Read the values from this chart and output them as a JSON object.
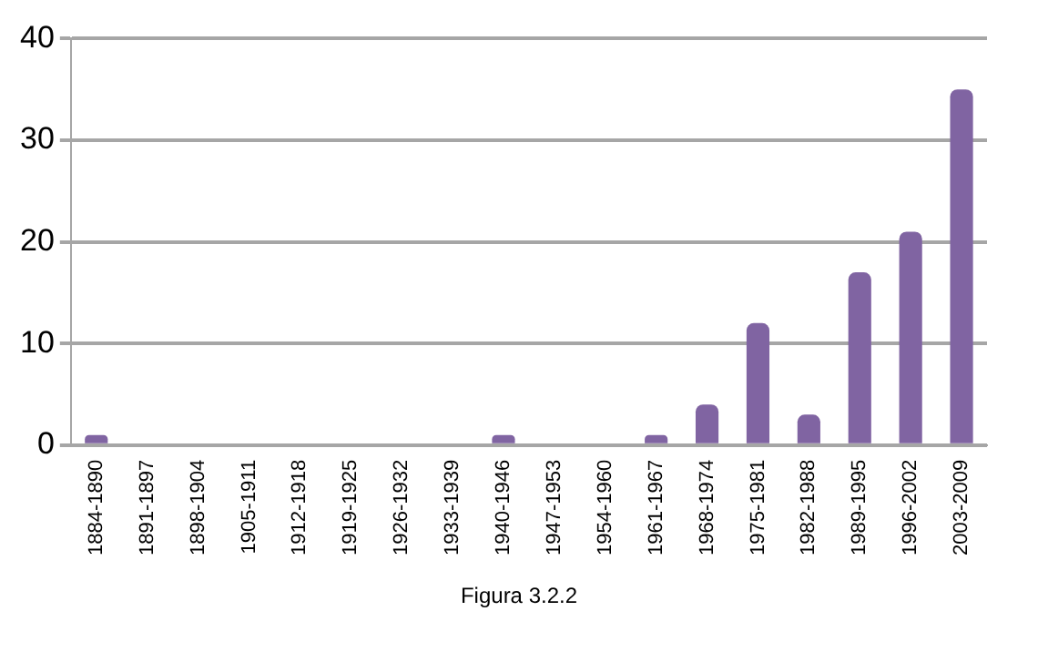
{
  "chart_data": {
    "type": "bar",
    "categories": [
      "1884-1890",
      "1891-1897",
      "1898-1904",
      "1905-1911",
      "1912-1918",
      "1919-1925",
      "1926-1932",
      "1933-1939",
      "1940-1946",
      "1947-1953",
      "1954-1960",
      "1961-1967",
      "1968-1974",
      "1975-1981",
      "1982-1988",
      "1989-1995",
      "1996-2002",
      "2003-2009"
    ],
    "values": [
      1,
      0,
      0,
      0,
      0,
      0,
      0,
      0,
      1,
      0,
      0,
      1,
      4,
      12,
      3,
      17,
      21,
      35
    ],
    "color": "#8064a2",
    "ylim": [
      0,
      40
    ],
    "yticks": [
      0,
      10,
      20,
      30,
      40
    ],
    "grid": "y",
    "legend": false,
    "annotations": [
      "Figura 3.2.2"
    ]
  }
}
